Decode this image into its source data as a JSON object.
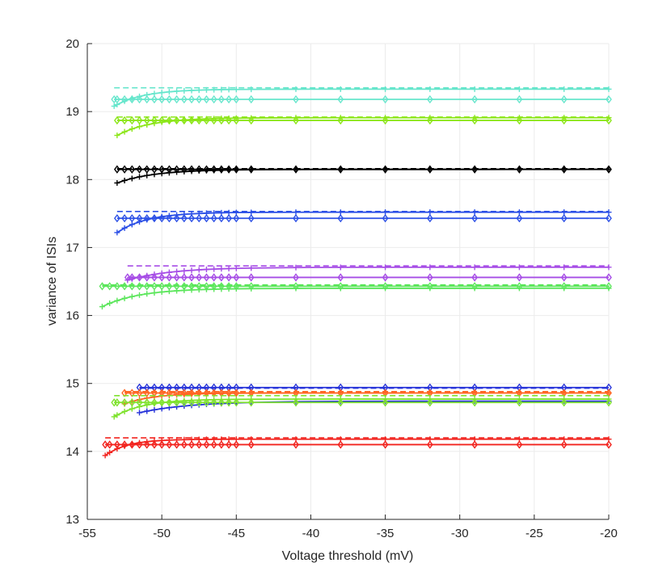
{
  "chart_data": {
    "type": "line",
    "title": "",
    "xlabel": "Voltage threshold (mV)",
    "ylabel": "variance of ISIs",
    "xlim": [
      -55,
      -20
    ],
    "ylim": [
      13,
      20
    ],
    "xticks": [
      -55,
      -50,
      -45,
      -40,
      -35,
      -30,
      -25,
      -20
    ],
    "yticks": [
      13,
      14,
      15,
      16,
      17,
      18,
      19,
      20
    ],
    "xtick_labels": [
      "-55",
      "-50",
      "-45",
      "-40",
      "-35",
      "-30",
      "-25",
      "-20"
    ],
    "ytick_labels": [
      "13",
      "14",
      "15",
      "16",
      "17",
      "18",
      "19",
      "20"
    ],
    "grid": true,
    "marker_x": [
      -20,
      -23,
      -26,
      -29,
      -32,
      -35,
      -38,
      -41,
      -44,
      -45,
      -45.5,
      -46,
      -46.5,
      -47,
      -47.5,
      -48,
      -48.5,
      -49,
      -49.5,
      -50,
      -50.5,
      -51,
      -51.5,
      -52,
      -52.5,
      -53,
      -53.5,
      -54
    ],
    "groups": [
      {
        "name": "cyan",
        "color": "#66E6CC",
        "xmin": -53.2,
        "dashed": 19.35,
        "diamond": 19.18,
        "plus_start": 19.08,
        "plus_end": 19.33,
        "tau": 2.0
      },
      {
        "name": "lime-upper",
        "color": "#8CE619",
        "xmin": -53.0,
        "dashed": 18.92,
        "diamond": 18.87,
        "plus_start": 18.65,
        "plus_end": 18.91,
        "tau": 2.2
      },
      {
        "name": "black",
        "color": "#000000",
        "xmin": -53.0,
        "dashed": 18.16,
        "diamond": 18.15,
        "plus_start": 17.95,
        "plus_end": 18.15,
        "tau": 2.5
      },
      {
        "name": "blue-middle",
        "color": "#2B4FE6",
        "xmin": -53.0,
        "dashed": 17.53,
        "diamond": 17.43,
        "plus_start": 17.22,
        "plus_end": 17.52,
        "tau": 2.0
      },
      {
        "name": "purple",
        "color": "#A64DE6",
        "xmin": -52.3,
        "dashed": 16.73,
        "diamond": 16.56,
        "plus_start": 16.52,
        "plus_end": 16.71,
        "tau": 3.0
      },
      {
        "name": "green-light",
        "color": "#5CE65C",
        "xmin": -54.0,
        "dashed": 16.45,
        "diamond": 16.43,
        "plus_start": 16.13,
        "plus_end": 16.4,
        "tau": 2.5
      },
      {
        "name": "blue-lower",
        "color": "#2633D9",
        "xmin": -51.5,
        "dashed": 14.93,
        "diamond": 14.94,
        "plus_start": 14.57,
        "plus_end": 14.74,
        "tau": 3.5
      },
      {
        "name": "orange",
        "color": "#FF6622",
        "xmin": -52.5,
        "dashed": 14.88,
        "diamond": 14.86,
        "plus_start": 14.7,
        "plus_end": 14.86,
        "tau": 2.0
      },
      {
        "name": "lime-lower",
        "color": "#7FE22E",
        "xmin": -53.2,
        "dashed": 14.82,
        "diamond": 14.72,
        "plus_start": 14.51,
        "plus_end": 14.77,
        "tau": 2.0
      },
      {
        "name": "red",
        "color": "#F2241F",
        "xmin": -53.8,
        "dashed": 14.2,
        "diamond": 14.1,
        "plus_start": 13.94,
        "plus_end": 14.18,
        "tau": 1.5
      }
    ]
  }
}
